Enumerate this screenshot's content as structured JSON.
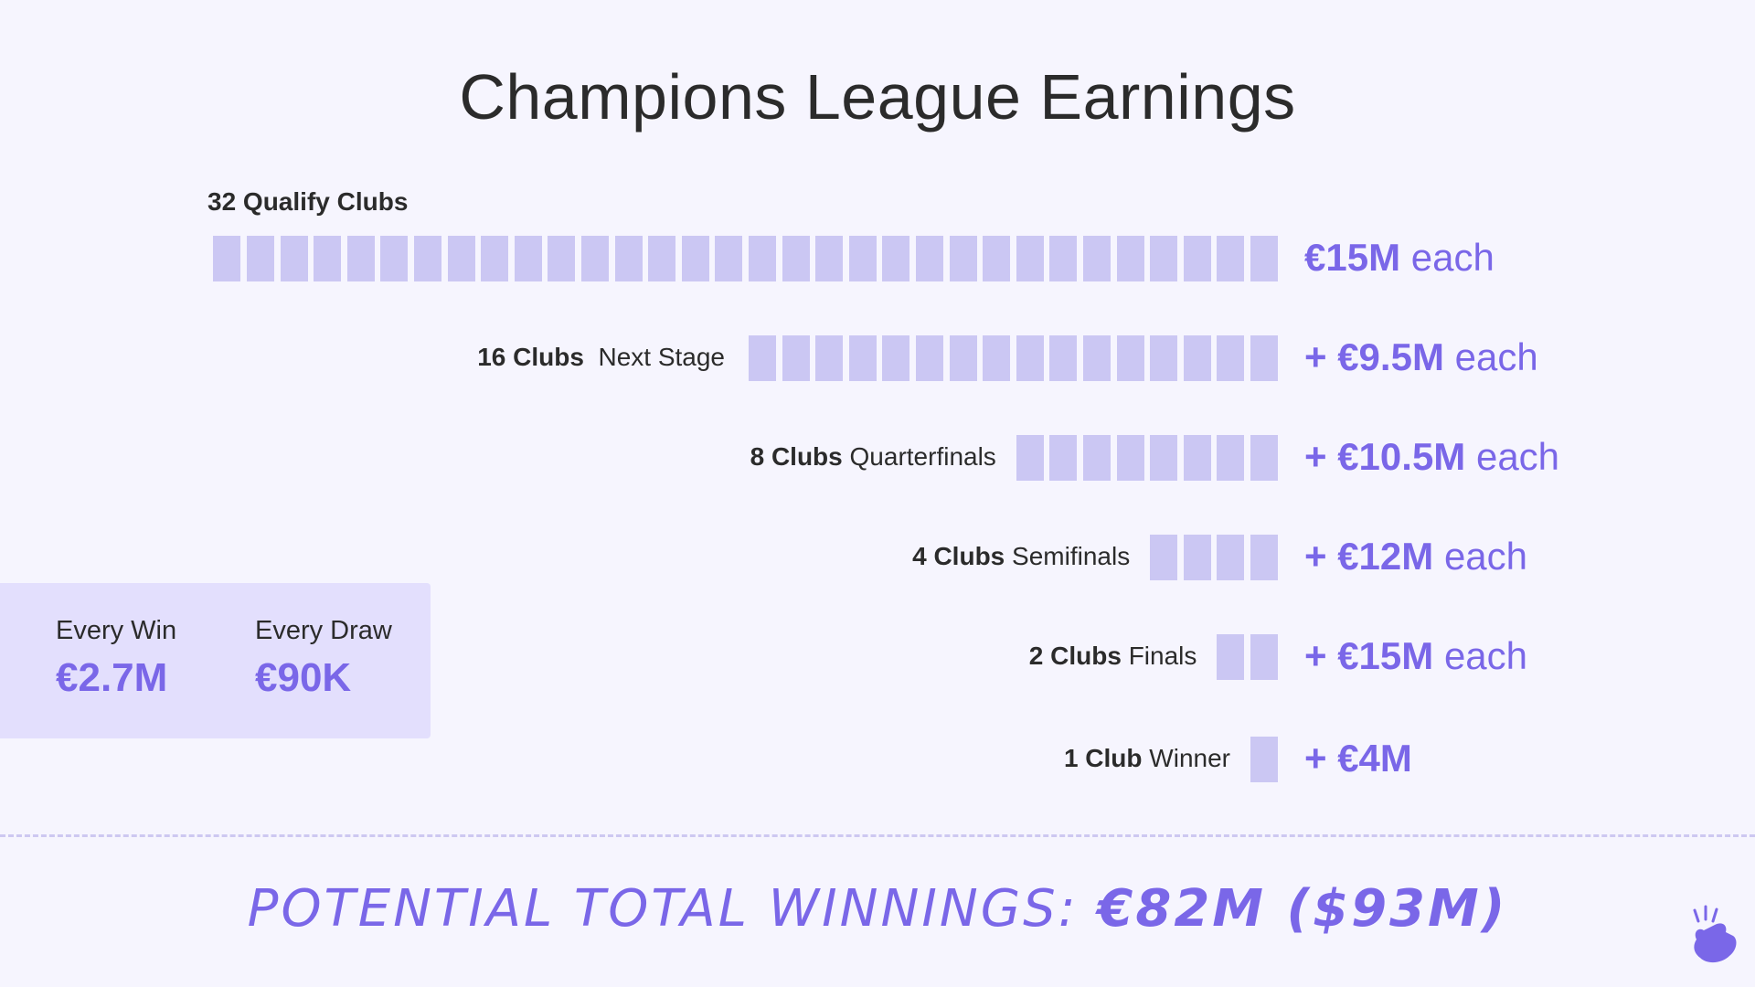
{
  "chart_data": {
    "type": "bar",
    "title": "Champions League Earnings",
    "stages": [
      {
        "count": "32 Qualify Clubs",
        "stage": "",
        "clubs": 32,
        "amount_prefix": "",
        "amount": "€15M",
        "amount_suffix": "each"
      },
      {
        "count": "16 Clubs",
        "stage": "Next Stage",
        "clubs": 16,
        "amount_prefix": "+ ",
        "amount": "€9.5M",
        "amount_suffix": "each"
      },
      {
        "count": "8 Clubs",
        "stage": "Quarterfinals",
        "clubs": 8,
        "amount_prefix": "+ ",
        "amount": "€10.5M",
        "amount_suffix": "each"
      },
      {
        "count": "4 Clubs",
        "stage": "Semifinals",
        "clubs": 4,
        "amount_prefix": "+ ",
        "amount": "€12M",
        "amount_suffix": "each"
      },
      {
        "count": "2 Clubs",
        "stage": "Finals",
        "clubs": 2,
        "amount_prefix": "+ ",
        "amount": "€15M",
        "amount_suffix": "each"
      },
      {
        "count": "1 Club",
        "stage": "Winner",
        "clubs": 1,
        "amount_prefix": "+ ",
        "amount": "€4M",
        "amount_suffix": ""
      }
    ],
    "colors": {
      "square": "#cbc7f3",
      "accent": "#7a67e8",
      "background": "#f6f5fe",
      "box": "#e3dffd"
    }
  },
  "match_box": {
    "win_label": "Every Win",
    "win_value": "€2.7M",
    "draw_label": "Every Draw",
    "draw_value": "€90K"
  },
  "footer": {
    "total_label": "POTENTIAL TOTAL WINNINGS:",
    "total_value": "€82M ($93M)"
  },
  "logo": {
    "icon": "snap-hand-icon"
  }
}
